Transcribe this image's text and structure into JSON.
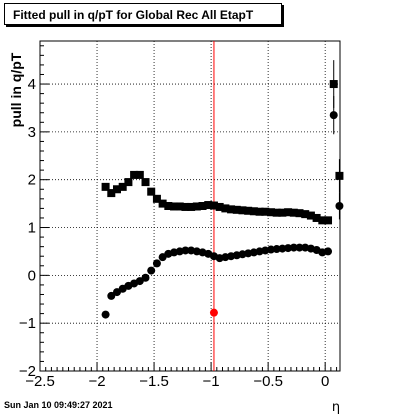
{
  "chart_data": {
    "type": "scatter",
    "title": "Fitted pull in q/pT for Global Rec All EtapT",
    "xlabel": "η",
    "ylabel": "pull in q/pT",
    "xlim": [
      -2.5,
      0.13
    ],
    "ylim": [
      -2.0,
      4.9
    ],
    "grid": true,
    "x_ticks": [
      -2.5,
      -2,
      -1.5,
      -1,
      -0.5,
      0
    ],
    "x_tick_labels": [
      "−2.5",
      "−2",
      "−1.5",
      "−1",
      "−0.5",
      "0"
    ],
    "y_ticks": [
      -2,
      -1,
      0,
      1,
      2,
      3,
      4
    ],
    "y_tick_labels": [
      "−2",
      "−1",
      "0",
      "1",
      "2",
      "3",
      "4"
    ],
    "vertical_line": {
      "x": -0.975,
      "color": "#ff0000"
    },
    "series": [
      {
        "marker": "square",
        "color": "#000000",
        "x": [
          -1.925,
          -1.875,
          -1.825,
          -1.775,
          -1.725,
          -1.675,
          -1.625,
          -1.575,
          -1.525,
          -1.475,
          -1.425,
          -1.375,
          -1.325,
          -1.275,
          -1.225,
          -1.175,
          -1.125,
          -1.075,
          -1.025,
          -0.975,
          -0.925,
          -0.875,
          -0.825,
          -0.775,
          -0.725,
          -0.675,
          -0.625,
          -0.575,
          -0.525,
          -0.475,
          -0.425,
          -0.375,
          -0.325,
          -0.275,
          -0.225,
          -0.175,
          -0.125,
          -0.075,
          -0.025,
          0.025,
          0.075,
          0.125
        ],
        "y": [
          1.85,
          1.72,
          1.8,
          1.85,
          1.95,
          2.1,
          2.1,
          1.95,
          1.75,
          1.6,
          1.5,
          1.45,
          1.44,
          1.44,
          1.43,
          1.43,
          1.44,
          1.45,
          1.47,
          1.46,
          1.43,
          1.4,
          1.38,
          1.37,
          1.36,
          1.35,
          1.34,
          1.33,
          1.33,
          1.32,
          1.31,
          1.31,
          1.32,
          1.31,
          1.3,
          1.28,
          1.25,
          1.2,
          1.15,
          1.15,
          4.0,
          2.08
        ],
        "yerr": [
          0.06,
          0.05,
          0.05,
          0.05,
          0.05,
          0.05,
          0.05,
          0.05,
          0.05,
          0.04,
          0.04,
          0.04,
          0.04,
          0.04,
          0.04,
          0.04,
          0.04,
          0.04,
          0.04,
          0.04,
          0.04,
          0.04,
          0.04,
          0.04,
          0.04,
          0.04,
          0.04,
          0.04,
          0.04,
          0.04,
          0.04,
          0.04,
          0.04,
          0.04,
          0.04,
          0.04,
          0.04,
          0.05,
          0.05,
          0.06,
          0.5,
          0.35
        ]
      },
      {
        "marker": "circle",
        "color": "#000000",
        "x": [
          -1.925,
          -1.875,
          -1.825,
          -1.775,
          -1.725,
          -1.675,
          -1.625,
          -1.575,
          -1.525,
          -1.475,
          -1.425,
          -1.375,
          -1.325,
          -1.275,
          -1.225,
          -1.175,
          -1.125,
          -1.075,
          -1.025,
          -0.975,
          -0.925,
          -0.875,
          -0.825,
          -0.775,
          -0.725,
          -0.675,
          -0.625,
          -0.575,
          -0.525,
          -0.475,
          -0.425,
          -0.375,
          -0.325,
          -0.275,
          -0.225,
          -0.175,
          -0.125,
          -0.075,
          -0.025,
          0.025,
          0.075,
          0.125
        ],
        "y": [
          -0.82,
          -0.43,
          -0.35,
          -0.28,
          -0.22,
          -0.17,
          -0.12,
          -0.05,
          0.1,
          0.25,
          0.38,
          0.45,
          0.48,
          0.5,
          0.52,
          0.52,
          0.5,
          0.48,
          0.45,
          0.4,
          0.36,
          0.38,
          0.4,
          0.42,
          0.44,
          0.46,
          0.48,
          0.5,
          0.52,
          0.54,
          0.55,
          0.56,
          0.57,
          0.58,
          0.58,
          0.58,
          0.56,
          0.53,
          0.48,
          0.5,
          3.35,
          1.45
        ],
        "yerr": [
          0.05,
          0.04,
          0.04,
          0.04,
          0.04,
          0.04,
          0.04,
          0.04,
          0.04,
          0.04,
          0.04,
          0.04,
          0.04,
          0.04,
          0.04,
          0.04,
          0.04,
          0.04,
          0.04,
          0.04,
          0.04,
          0.04,
          0.04,
          0.04,
          0.04,
          0.04,
          0.04,
          0.04,
          0.04,
          0.04,
          0.04,
          0.04,
          0.04,
          0.04,
          0.04,
          0.04,
          0.04,
          0.04,
          0.05,
          0.05,
          0.4,
          0.28
        ]
      },
      {
        "marker": "circle",
        "color": "#ff0000",
        "x": [
          -0.975
        ],
        "y": [
          -0.78
        ],
        "yerr": [
          0.0
        ]
      }
    ]
  },
  "datestamp": "Sun Jan 10 09:49:27 2021"
}
